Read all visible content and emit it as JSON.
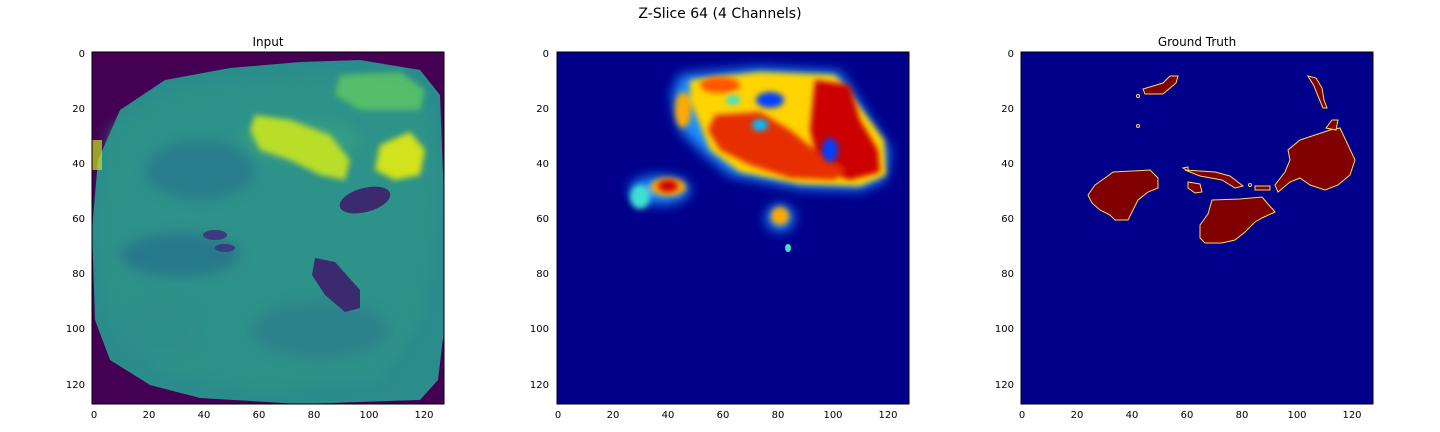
{
  "figure": {
    "suptitle": "Z-Slice 64 (4 Channels)"
  },
  "panels": [
    {
      "title": "Input",
      "colormap": "viridis",
      "xticks": [
        "0",
        "20",
        "40",
        "60",
        "80",
        "100",
        "120"
      ],
      "yticks": [
        "0",
        "20",
        "40",
        "60",
        "80",
        "100",
        "120"
      ]
    },
    {
      "title": "",
      "colormap": "jet",
      "xticks": [
        "0",
        "20",
        "40",
        "60",
        "80",
        "100",
        "120"
      ],
      "yticks": [
        "0",
        "20",
        "40",
        "60",
        "80",
        "100",
        "120"
      ]
    },
    {
      "title": "Ground Truth",
      "colormap": "jet",
      "xticks": [
        "0",
        "20",
        "40",
        "60",
        "80",
        "100",
        "120"
      ],
      "yticks": [
        "0",
        "20",
        "40",
        "60",
        "80",
        "100",
        "120"
      ]
    }
  ],
  "colors": {
    "viridis_bg": "#440154",
    "viridis_tissue": "#2c8c8c",
    "viridis_bright": "#c8e020",
    "jet_bg": "#00008b",
    "jet_red": "#d21400",
    "gt_label": "#800000"
  }
}
